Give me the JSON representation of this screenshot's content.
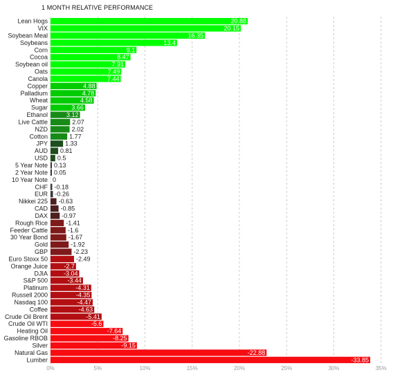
{
  "header": {
    "title": "1 MONTH RELATIVE PERFORMANCE"
  },
  "colors": {
    "strong_up": "#00ff00",
    "up": "#00cc00",
    "mid_up": "#178b17",
    "weak_up": "#1e4d1e",
    "neutral": "#3a3a3a",
    "weak_down": "#4d1f1f",
    "mid_down": "#7f1a1a",
    "down": "#b30f12",
    "strong_down": "#f70c12",
    "grid": "#cccccc"
  },
  "chart_data": {
    "type": "bar",
    "orientation": "horizontal",
    "title": "1 MONTH RELATIVE PERFORMANCE",
    "xlim": [
      -35,
      35
    ],
    "grid": true,
    "x_ticks": [
      "0%",
      "5%",
      "10%",
      "15%",
      "20%",
      "25%",
      "30%",
      "35%"
    ],
    "categories": [
      "Lean Hogs",
      "VIX",
      "Soybean Meal",
      "Soybeans",
      "Corn",
      "Cocoa",
      "Soybean oil",
      "Oats",
      "Canola",
      "Copper",
      "Palladium",
      "Wheat",
      "Sugar",
      "Ethanol",
      "Live Cattle",
      "NZD",
      "Cotton",
      "JPY",
      "AUD",
      "USD",
      "5 Year Note",
      "2 Year Note",
      "10 Year Note",
      "CHF",
      "EUR",
      "Nikkei 225",
      "CAD",
      "DAX",
      "Rough Rice",
      "Feeder Cattle",
      "30 Year Bond",
      "Gold",
      "GBP",
      "Euro Stoxx 50",
      "Orange Juice",
      "DJIA",
      "S&P 500",
      "Platinum",
      "Russell 2000",
      "Nasdaq 100",
      "Coffee",
      "Crude Oil Brent",
      "Crude Oil WTI",
      "Heating Oil",
      "Gasoline RBOB",
      "Silver",
      "Natural Gas",
      "Lumber"
    ],
    "values": [
      20.88,
      20.15,
      16.35,
      13.4,
      9.1,
      8.47,
      7.91,
      7.49,
      7.44,
      4.88,
      4.78,
      4.58,
      3.66,
      3.12,
      2.07,
      2.02,
      1.77,
      1.33,
      0.81,
      0.5,
      0.13,
      0.05,
      0,
      -0.18,
      -0.26,
      -0.63,
      -0.85,
      -0.97,
      -1.41,
      -1.6,
      -1.67,
      -1.92,
      -2.23,
      -2.49,
      -2.7,
      -3.04,
      -3.44,
      -4.31,
      -4.35,
      -4.47,
      -4.63,
      -5.41,
      -5.6,
      -7.64,
      -8.25,
      -9.15,
      -22.88,
      -33.85
    ],
    "value_labels": [
      "20.88",
      "20.15",
      "16.35",
      "13.4",
      "9.1",
      "8.47",
      "7.91",
      "7.49",
      "7.44",
      "4.88",
      "4.78",
      "4.58",
      "3.66",
      "3.12",
      "2.07",
      "2.02",
      "1.77",
      "1.33",
      "0.81",
      "0.5",
      "0.13",
      "0.05",
      "0",
      "-0.18",
      "-0.26",
      "-0.63",
      "-0.85",
      "-0.97",
      "-1.41",
      "-1.6",
      "-1.67",
      "-1.92",
      "-2.23",
      "-2.49",
      "-2.7",
      "-3.04",
      "-3.44",
      "-4.31",
      "-4.35",
      "-4.47",
      "-4.63",
      "-5.41",
      "-5.6",
      "-7.64",
      "-8.25",
      "-9.15",
      "-22.88",
      "-33.85"
    ]
  }
}
